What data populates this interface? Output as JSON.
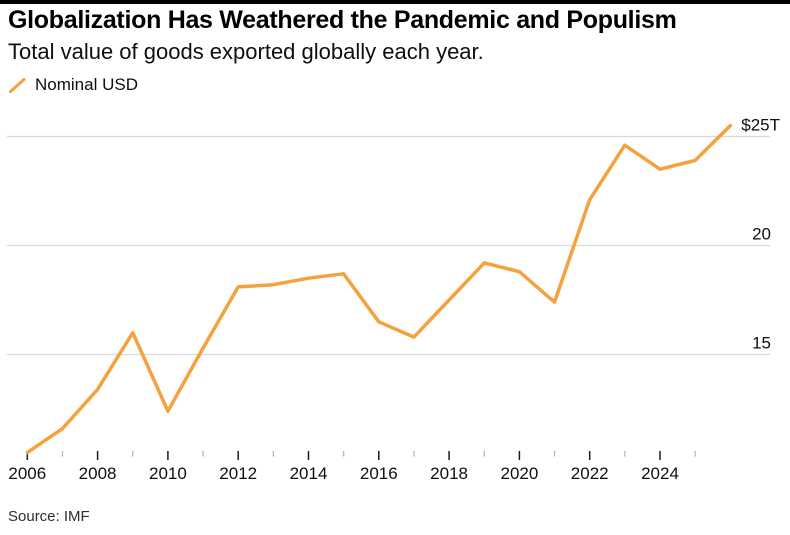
{
  "page": {
    "title": "Globalization Has Weathered the Pandemic and Populism",
    "subtitle": "Total value of goods exported globally each year.",
    "source": "Source: IMF"
  },
  "legend": {
    "label": "Nominal USD",
    "swatch": "line-slash-icon",
    "color": "#F5A13D"
  },
  "colors": {
    "top_bar": "#000000",
    "accent_line": "#F5A13D",
    "gridline": "#D9D9D9",
    "major_tick": "#1A1A1A",
    "minor_tick": "#B5B5B5",
    "axis_text": "#0F0F0F"
  },
  "chart_data": {
    "type": "line",
    "title": "Globalization Has Weathered the Pandemic and Populism",
    "subtitle": "Total value of goods exported globally each year.",
    "unit": "trillion USD, nominal",
    "legend_position": "top-left",
    "grid": "horizontal-only",
    "yaxis_side": "right",
    "ylim": [
      10.4,
      25.6
    ],
    "yticks": [
      {
        "value": 25,
        "label": "$25T"
      },
      {
        "value": 20,
        "label": "20"
      },
      {
        "value": 15,
        "label": "15"
      }
    ],
    "xticks_major": [
      2006,
      2008,
      2010,
      2012,
      2014,
      2016,
      2018,
      2020,
      2022,
      2024
    ],
    "xticks_minor": [
      2007,
      2009,
      2011,
      2013,
      2015,
      2017,
      2019,
      2021,
      2023,
      2025
    ],
    "x_plot_note": "each year's value is plotted at year-end, i.e. at the following year's tick position",
    "series": [
      {
        "name": "Nominal USD",
        "x": [
          2005,
          2006,
          2007,
          2008,
          2009,
          2010,
          2011,
          2012,
          2013,
          2014,
          2015,
          2016,
          2017,
          2018,
          2019,
          2020,
          2021,
          2022,
          2023,
          2024,
          2025
        ],
        "values": [
          10.5,
          11.6,
          13.4,
          16.0,
          12.4,
          15.3,
          18.1,
          18.2,
          18.5,
          18.7,
          16.5,
          15.8,
          17.5,
          19.2,
          18.8,
          17.4,
          22.1,
          24.6,
          23.5,
          23.9,
          25.5
        ]
      }
    ]
  }
}
